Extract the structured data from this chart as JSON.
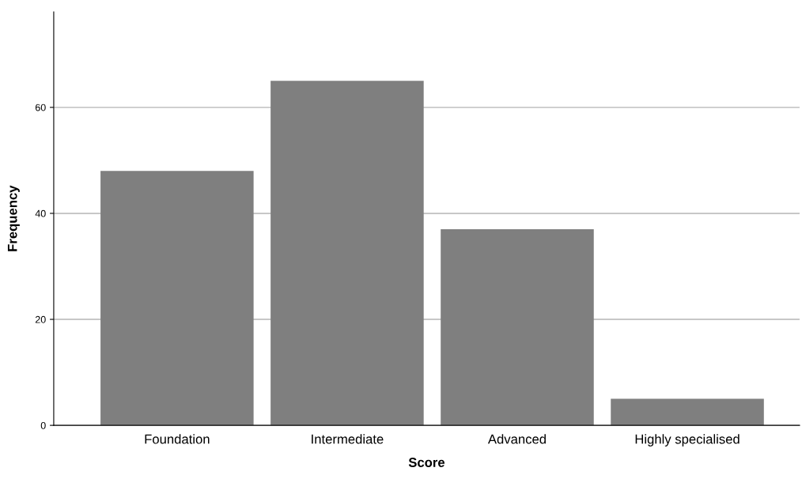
{
  "chart_data": {
    "type": "bar",
    "xlabel": "Score",
    "ylabel": "Frequency",
    "categories": [
      "Foundation",
      "Intermediate",
      "Advanced",
      "Highly specialised"
    ],
    "values": [
      48,
      65,
      37,
      5
    ],
    "color": "#7f7f7f",
    "ylim": [
      0,
      78
    ],
    "yticks": [
      0,
      20,
      40,
      60
    ],
    "grid": "y",
    "legend": false
  }
}
